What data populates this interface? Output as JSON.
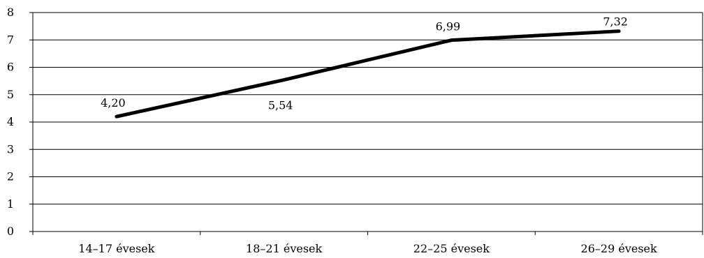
{
  "chart_data": {
    "type": "line",
    "categories": [
      "14–17 évesek",
      "18–21 évesek",
      "22–25 évesek",
      "26–29 évesek"
    ],
    "series": [
      {
        "values": [
          4.2,
          5.54,
          6.99,
          7.32
        ]
      }
    ],
    "data_labels": [
      "4,20",
      "5,54",
      "6,99",
      "7,32"
    ],
    "y_ticks": [
      "0",
      "1",
      "2",
      "3",
      "4",
      "5",
      "6",
      "7",
      "8"
    ],
    "ylim": [
      0,
      8
    ],
    "grid": true,
    "legend": "none",
    "title": "",
    "xlabel": "",
    "ylabel": "",
    "colors": {
      "line": "#000000",
      "grid": "#000000",
      "axis": "#000000"
    }
  }
}
